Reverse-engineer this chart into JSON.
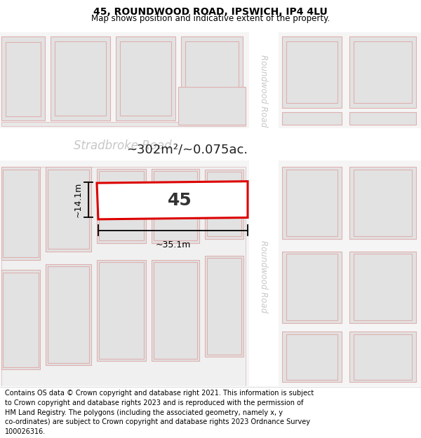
{
  "title_line1": "45, ROUNDWOOD ROAD, IPSWICH, IP4 4LU",
  "title_line2": "Map shows position and indicative extent of the property.",
  "footer_lines": [
    "Contains OS data © Crown copyright and database right 2021. This information is subject",
    "to Crown copyright and database rights 2023 and is reproduced with the permission of",
    "HM Land Registry. The polygons (including the associated geometry, namely x, y",
    "co-ordinates) are subject to Crown copyright and database rights 2023 Ordnance Survey",
    "100026316."
  ],
  "area_label": "~302m²/~0.075ac.",
  "property_number": "45",
  "width_label": "~35.1m",
  "height_label": "~14.1m",
  "map_bg": "#f5f5f5",
  "road_color": "#ffffff",
  "block_fill": "#ececec",
  "building_fill": "#e2e2e2",
  "building_edge": "#e0b0b0",
  "highlight_fill": "#ffffff",
  "highlight_edge": "#dd0000",
  "road_label_color": "#c8c8c8",
  "title_fontsize": 10,
  "subtitle_fontsize": 8.5,
  "footer_fontsize": 7.0
}
